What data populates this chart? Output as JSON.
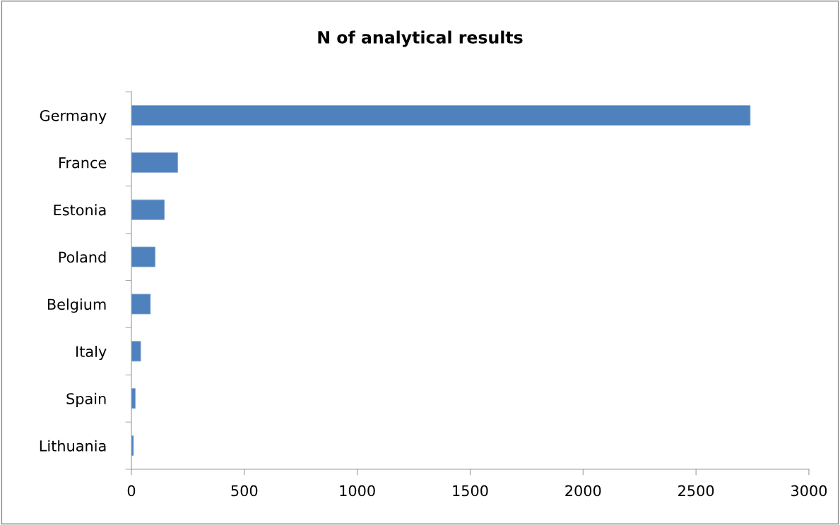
{
  "chart_data": {
    "type": "bar",
    "orientation": "horizontal",
    "title": "N of analytical results",
    "categories": [
      "Germany",
      "France",
      "Estonia",
      "Poland",
      "Belgium",
      "Italy",
      "Spain",
      "Lithuania"
    ],
    "values": [
      2740,
      205,
      146,
      105,
      84,
      41,
      17,
      9
    ],
    "color": "#4f81bd",
    "xlim": [
      0,
      3000
    ],
    "xticks": [
      0,
      500,
      1000,
      1500,
      2000,
      2500,
      3000
    ],
    "grid": false,
    "legend": false
  }
}
